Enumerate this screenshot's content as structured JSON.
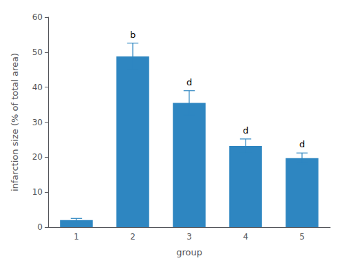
{
  "chart_data": {
    "type": "bar",
    "categories": [
      "1",
      "2",
      "3",
      "4",
      "5"
    ],
    "values": [
      2.0,
      48.8,
      35.5,
      23.2,
      19.7
    ],
    "errors": [
      0.5,
      3.8,
      3.5,
      2.0,
      1.5
    ],
    "annotations": [
      null,
      "b",
      "d",
      "d",
      "d"
    ],
    "color": "#2e86c1",
    "xlabel": "group",
    "ylabel": "infarction size (% of total area)",
    "ylim": [
      0,
      60
    ],
    "yticks": [
      0,
      10,
      20,
      30,
      40,
      50,
      60
    ],
    "grid": false
  }
}
